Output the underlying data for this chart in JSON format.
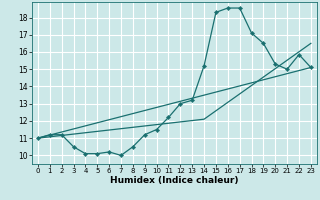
{
  "xlabel": "Humidex (Indice chaleur)",
  "bg_color": "#cce8e8",
  "grid_color": "#ffffff",
  "line_color": "#1a7070",
  "xlim": [
    -0.5,
    23.5
  ],
  "ylim": [
    9.5,
    18.9
  ],
  "yticks": [
    10,
    11,
    12,
    13,
    14,
    15,
    16,
    17,
    18
  ],
  "xticks": [
    0,
    1,
    2,
    3,
    4,
    5,
    6,
    7,
    8,
    9,
    10,
    11,
    12,
    13,
    14,
    15,
    16,
    17,
    18,
    19,
    20,
    21,
    22,
    23
  ],
  "line1_x": [
    0,
    1,
    2,
    3,
    4,
    5,
    6,
    7,
    8,
    9,
    10,
    11,
    12,
    13,
    14,
    15,
    16,
    17,
    18,
    19,
    20,
    21,
    22,
    23
  ],
  "line1_y": [
    11.0,
    11.2,
    11.2,
    10.5,
    10.1,
    10.1,
    10.2,
    10.0,
    10.5,
    11.2,
    11.5,
    12.2,
    13.0,
    13.2,
    15.2,
    18.3,
    18.55,
    18.55,
    17.1,
    16.5,
    15.3,
    15.0,
    15.85,
    15.1
  ],
  "line2_x": [
    0,
    23
  ],
  "line2_y": [
    11.0,
    15.1
  ],
  "line3_x": [
    0,
    14,
    23
  ],
  "line3_y": [
    11.0,
    12.1,
    16.5
  ]
}
